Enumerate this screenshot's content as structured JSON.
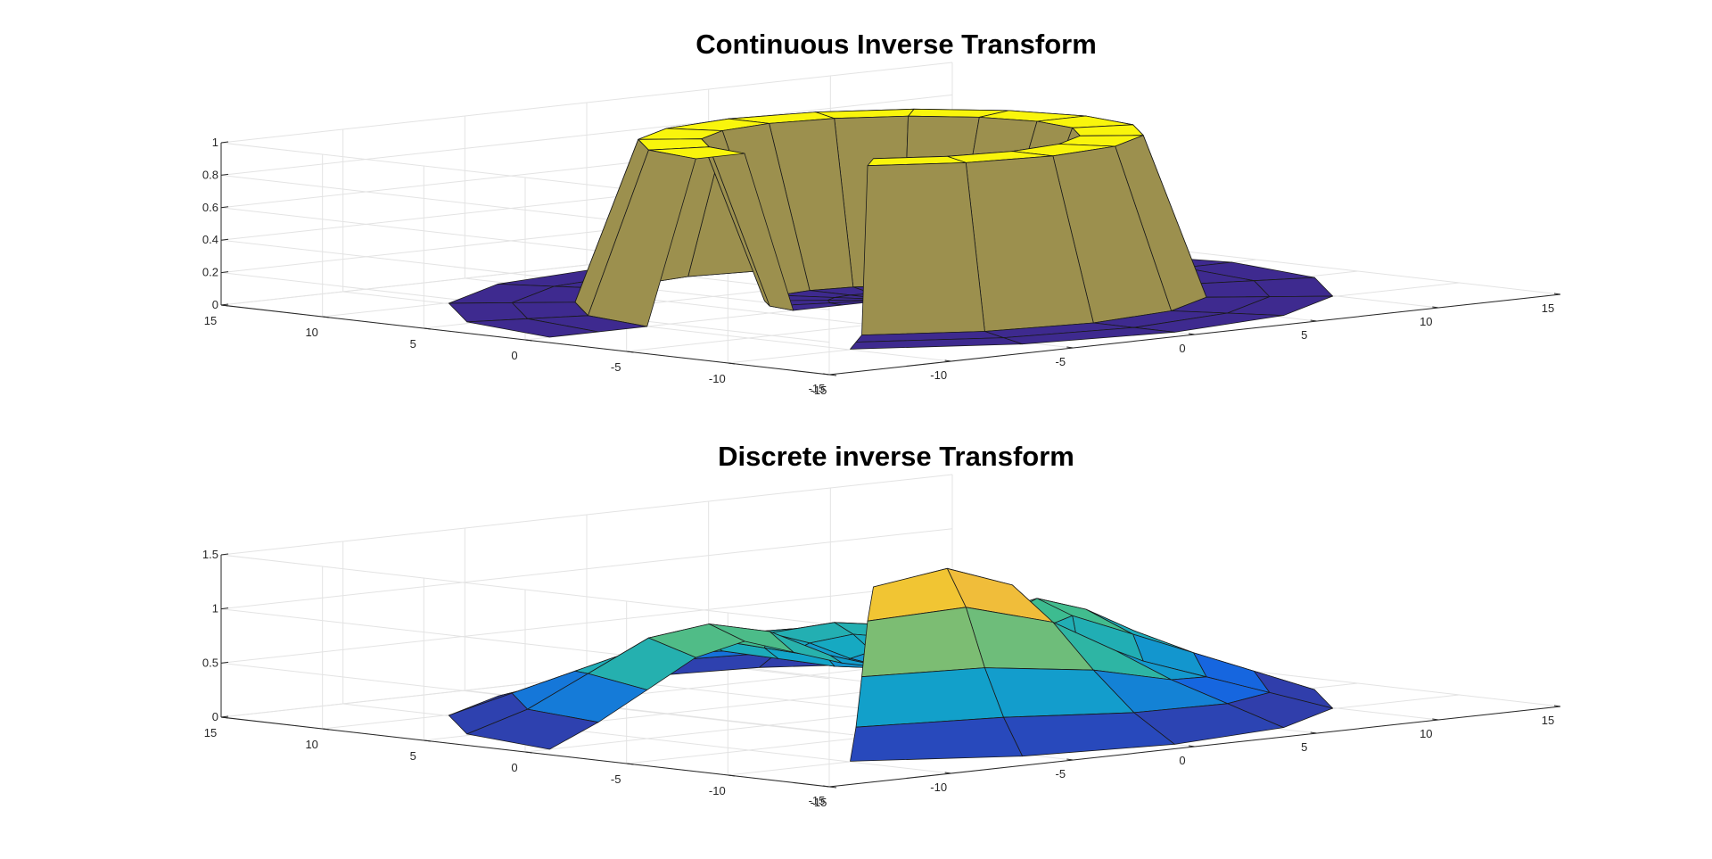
{
  "chart_data": [
    {
      "type": "surface",
      "title": "Continuous Inverse Transform",
      "xlabel": "",
      "ylabel": "",
      "zlabel": "",
      "xlim": [
        -15,
        15
      ],
      "ylim": [
        -15,
        15
      ],
      "zlim": [
        0,
        1
      ],
      "x_ticks": [
        "-15",
        "-10",
        "-5",
        "0",
        "5",
        "10",
        "15"
      ],
      "y_ticks": [
        "-15",
        "-10",
        "-5",
        "0",
        "5",
        "10",
        "15"
      ],
      "z_ticks": [
        "0",
        "0.2",
        "0.4",
        "0.6",
        "0.8",
        "1"
      ],
      "grid": true,
      "colormap": {
        "low": "#3e2a8f",
        "high": "#f9f50c"
      },
      "surface": {
        "domain": "disk",
        "r_values": [
          0,
          2,
          4,
          6,
          8,
          10,
          12,
          14
        ],
        "theta_steps": 16,
        "theta_start_deg": 90,
        "missing_sector_deg": [
          180,
          225
        ],
        "ring": [
          0,
          0,
          0,
          1,
          1,
          0,
          0,
          0
        ]
      }
    },
    {
      "type": "surface",
      "title": "Discrete inverse Transform",
      "xlabel": "",
      "ylabel": "",
      "zlabel": "",
      "xlim": [
        -15,
        15
      ],
      "ylim": [
        -15,
        15
      ],
      "zlim": [
        0,
        1.5
      ],
      "x_ticks": [
        "-15",
        "-10",
        "-5",
        "0",
        "5",
        "10",
        "15"
      ],
      "y_ticks": [
        "-15",
        "-10",
        "-5",
        "0",
        "5",
        "10",
        "15"
      ],
      "z_ticks": [
        "0",
        "0.5",
        "1",
        "1.5"
      ],
      "grid": true,
      "colormap": {
        "stops": [
          "#3e2a8f",
          "#1663e0",
          "#12a7c8",
          "#3dbc90",
          "#9ebd64",
          "#f0bd3a",
          "#f9f50c"
        ]
      },
      "surface": {
        "domain": "disk",
        "r_values": [
          0,
          2,
          4,
          6,
          8,
          10,
          12,
          14
        ],
        "theta_steps": 16,
        "theta_start_deg": 90,
        "missing_sector_deg": [
          180,
          225
        ],
        "z": [
          [
            0.4,
            0.4,
            0.4,
            0.4,
            0.4,
            0.4,
            0.4,
            0.4,
            0.4,
            0.4,
            0.4,
            0.4,
            0.4,
            0.4,
            0.4,
            0.4
          ],
          [
            0.45,
            0.4,
            0.5,
            0.55,
            0.5,
            0.6,
            0.7,
            0.7,
            0.6,
            0.5,
            0.4,
            0.5,
            0.6,
            0.5,
            0.5,
            0.5
          ],
          [
            0.55,
            0.45,
            0.6,
            0.8,
            0.65,
            0.9,
            1.15,
            1.3,
            1.0,
            0.6,
            0.45,
            0.6,
            0.7,
            0.6,
            0.55,
            0.6
          ],
          [
            0.6,
            0.5,
            0.7,
            0.9,
            0.8,
            1.0,
            1.35,
            1.5,
            1.3,
            0.8,
            0.5,
            0.8,
            0.9,
            0.7,
            0.6,
            0.65
          ],
          [
            0.55,
            0.45,
            0.6,
            0.8,
            0.7,
            0.85,
            1.1,
            1.2,
            1.0,
            0.65,
            0.45,
            0.6,
            0.75,
            0.6,
            0.55,
            0.55
          ],
          [
            0.4,
            0.3,
            0.4,
            0.5,
            0.45,
            0.55,
            0.65,
            0.7,
            0.6,
            0.4,
            0.3,
            0.4,
            0.5,
            0.4,
            0.35,
            0.4
          ],
          [
            0.2,
            0.15,
            0.2,
            0.2,
            0.2,
            0.2,
            0.25,
            0.3,
            0.25,
            0.2,
            0.15,
            0.2,
            0.2,
            0.2,
            0.15,
            0.2
          ],
          [
            0.0,
            0.0,
            0.0,
            0.0,
            0.0,
            0.0,
            0.0,
            0.0,
            0.0,
            0.0,
            0.0,
            0.0,
            0.0,
            0.0,
            0.0,
            0.0
          ]
        ]
      }
    }
  ]
}
